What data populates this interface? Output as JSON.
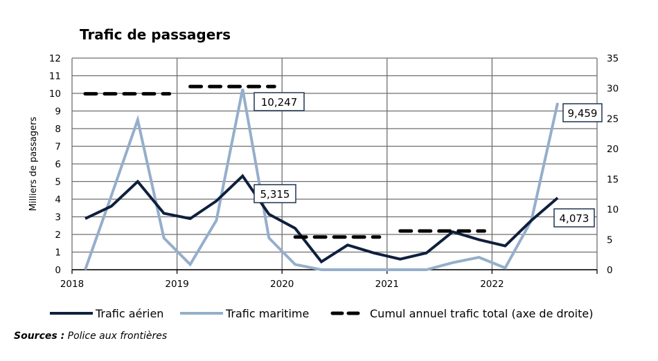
{
  "chart_data": {
    "type": "line",
    "title": "Trafic de passagers",
    "ylabel": "Milliers de passagers",
    "y2label": "",
    "ylim": [
      0,
      12
    ],
    "y2lim": [
      0,
      35
    ],
    "yticks": [
      "0",
      "1",
      "2",
      "3",
      "4",
      "5",
      "6",
      "7",
      "8",
      "9",
      "10",
      "11",
      "12"
    ],
    "y2ticks": [
      "0",
      "5",
      "10",
      "15",
      "20",
      "25",
      "30",
      "35"
    ],
    "xticks": [
      "2018",
      "2019",
      "2020",
      "2021",
      "2022"
    ],
    "grid": true,
    "legend_position": "bottom",
    "x_quarters": [
      "2018-T1",
      "2018-T2",
      "2018-T3",
      "2018-T4",
      "2019-T1",
      "2019-T2",
      "2019-T3",
      "2019-T4",
      "2020-T1",
      "2020-T2",
      "2020-T3",
      "2020-T4",
      "2021-T1",
      "2021-T2",
      "2021-T3",
      "2021-T4",
      "2022-T1",
      "2022-T2",
      "2022-T3"
    ],
    "series": [
      {
        "name": "Trafic aérien",
        "color": "#0f1f3d",
        "axis": "left",
        "values": [
          2.9,
          3.6,
          5.0,
          3.2,
          2.9,
          3.9,
          5.315,
          3.15,
          2.35,
          0.45,
          1.4,
          0.95,
          0.6,
          0.95,
          2.15,
          1.7,
          1.35,
          2.8,
          4.073
        ]
      },
      {
        "name": "Trafic maritime",
        "color": "#95aecb",
        "axis": "left",
        "values": [
          0,
          4.2,
          8.5,
          1.8,
          0.3,
          2.8,
          10.247,
          1.8,
          0.3,
          0,
          0,
          0,
          0,
          0,
          0.4,
          0.7,
          0.1,
          2.8,
          9.459
        ]
      },
      {
        "name": "Cumul annuel trafic total (axe de droite)",
        "color": "#000000",
        "axis": "right",
        "style": "dashed",
        "years": [
          "2018",
          "2019",
          "2020",
          "2021"
        ],
        "values": [
          29.1,
          30.3,
          5.4,
          6.4
        ]
      }
    ],
    "annotations": [
      {
        "text": "10,247",
        "series": "Trafic maritime",
        "point": "2019-T3"
      },
      {
        "text": "5,315",
        "series": "Trafic aérien",
        "point": "2019-T3"
      },
      {
        "text": "9,459",
        "series": "Trafic maritime",
        "point": "2022-T3"
      },
      {
        "text": "4,073",
        "series": "Trafic aérien",
        "point": "2022-T3"
      }
    ]
  },
  "legend": {
    "items": [
      {
        "label": "Trafic aérien"
      },
      {
        "label": "Trafic maritime"
      },
      {
        "label": "Cumul annuel trafic total (axe de droite)"
      }
    ]
  },
  "source": {
    "prefix": "Sources :",
    "text": " Police aux frontières"
  }
}
